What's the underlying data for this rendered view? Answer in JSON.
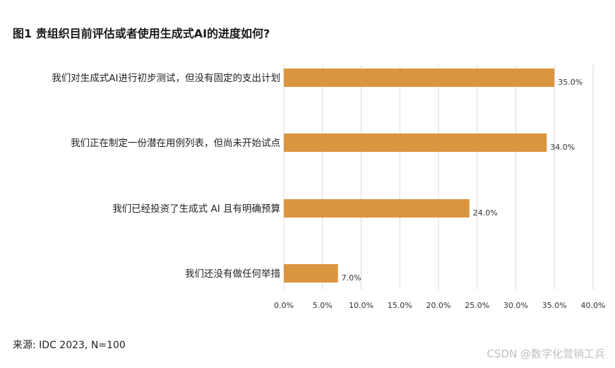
{
  "chart_data": {
    "type": "bar",
    "orientation": "horizontal",
    "title": "图1 贵组织目前评估或者使用生成式AI的进度如何?",
    "categories": [
      "我们对生成式AI进行初步测试，但没有固定的支出计划",
      "我们正在制定一份潜在用例列表，但尚未开始试点",
      "我们已经投资了生成式 AI 且有明确预算",
      "我们还没有做任何举措"
    ],
    "values": [
      35.0,
      34.0,
      24.0,
      7.0
    ],
    "value_labels": [
      "35.0%",
      "34.0%",
      "24.0%",
      "7.0%"
    ],
    "xlim": [
      0,
      40
    ],
    "x_ticks": [
      "0.0%",
      "5.0%",
      "10.0%",
      "15.0%",
      "20.0%",
      "25.0%",
      "30.0%",
      "35.0%",
      "40.0%"
    ],
    "x_tick_values": [
      0,
      5,
      10,
      15,
      20,
      25,
      30,
      35,
      40
    ],
    "xlabel": "",
    "ylabel": "",
    "grid": true,
    "bar_color": "#DA9540",
    "grid_color": "#D9D9D9"
  },
  "source_note": "来源: IDC 2023, N=100",
  "watermark": "CSDN @数字化营销工兵"
}
